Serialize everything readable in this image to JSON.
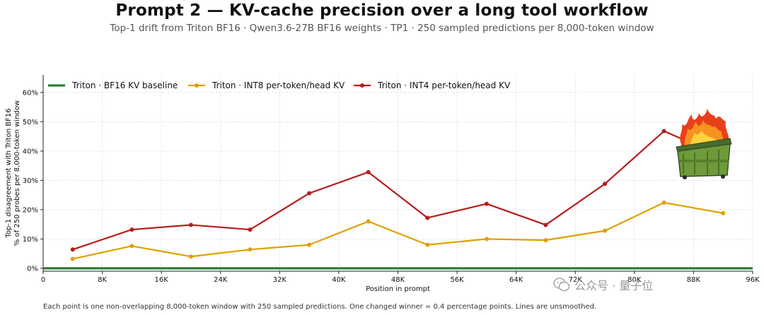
{
  "title": "Prompt 2 — KV-cache precision over a long tool workflow",
  "subtitle": "Top-1 drift from Triton BF16 · Qwen3.6-27B BF16 weights · TP1 · 250 sampled predictions per 8,000-token window",
  "footnote": "Each point is one non-overlapping 8,000-token window with 250 sampled predictions. One changed winner = 0.4 percentage points. Lines are unsmoothed.",
  "watermark": "公众号 · 量子位",
  "chart_data": {
    "type": "line",
    "xlabel": "Position in prompt",
    "ylabel": [
      "Top-1 disagreement with Triton BF16",
      "% of 250 probes per 8,000-token window"
    ],
    "xlim": [
      0,
      96000
    ],
    "ylim": [
      -0.01,
      0.66
    ],
    "x_ticks": [
      0,
      8000,
      16000,
      24000,
      32000,
      40000,
      48000,
      56000,
      64000,
      72000,
      80000,
      88000,
      96000
    ],
    "x_tick_labels": [
      "0",
      "8K",
      "16K",
      "24K",
      "32K",
      "40K",
      "48K",
      "56K",
      "64K",
      "72K",
      "80K",
      "88K",
      "96K"
    ],
    "y_ticks": [
      0,
      0.1,
      0.2,
      0.3,
      0.4,
      0.5,
      0.6
    ],
    "y_tick_labels": [
      "0%",
      "10%",
      "20%",
      "30%",
      "40%",
      "50%",
      "60%"
    ],
    "grid": true,
    "legend_position": "top-left",
    "series": [
      {
        "name": "Triton · BF16 KV baseline",
        "color": "#2e7d32",
        "markers": false,
        "x": [
          0,
          96000
        ],
        "values": [
          0.0,
          0.0
        ]
      },
      {
        "name": "Triton · INT8 per-token/head KV",
        "color": "#e0a000",
        "markers": true,
        "x": [
          4000,
          12000,
          20000,
          28000,
          36000,
          44000,
          52000,
          60000,
          68000,
          76000,
          84000,
          92000
        ],
        "values": [
          0.032,
          0.076,
          0.04,
          0.064,
          0.08,
          0.16,
          0.08,
          0.1,
          0.096,
          0.128,
          0.224,
          0.188
        ]
      },
      {
        "name": "Triton · INT4 per-token/head KV",
        "color": "#b71c1c",
        "markers": true,
        "x": [
          4000,
          12000,
          20000,
          28000,
          36000,
          44000,
          52000,
          60000,
          68000,
          76000,
          84000,
          92000
        ],
        "values": [
          0.064,
          0.132,
          0.148,
          0.132,
          0.256,
          0.328,
          0.172,
          0.22,
          0.148,
          0.288,
          0.468,
          0.38
        ]
      }
    ],
    "annotations": [
      {
        "type": "image",
        "icon": "burning-dumpster-icon"
      }
    ]
  }
}
